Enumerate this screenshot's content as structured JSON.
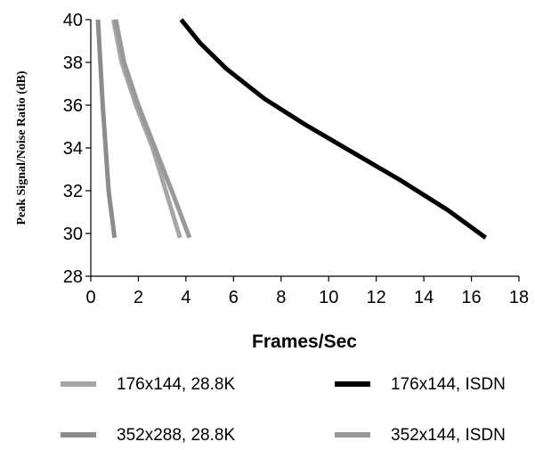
{
  "chart_data": {
    "type": "line",
    "xlabel": "Frames/Sec",
    "ylabel": "Peak Signal/Noise Ratio (dB)",
    "xlim": [
      0,
      18
    ],
    "ylim": [
      28,
      40
    ],
    "x_ticks": [
      "0",
      "2",
      "4",
      "6",
      "8",
      "10",
      "12",
      "14",
      "16",
      "18"
    ],
    "y_ticks": [
      "28",
      "30",
      "32",
      "34",
      "36",
      "38",
      "40"
    ],
    "grid": false,
    "legend_position": "bottom",
    "series": [
      {
        "name": "176x144, 28.8K",
        "color": "#a6a6a6",
        "points": [
          [
            0.95,
            40.0
          ],
          [
            1.3,
            38.0
          ],
          [
            1.9,
            36.0
          ],
          [
            2.6,
            34.0
          ],
          [
            3.15,
            32.0
          ],
          [
            3.75,
            29.8
          ]
        ]
      },
      {
        "name": "176x144, ISDN",
        "color": "#000000",
        "points": [
          [
            3.8,
            40.0
          ],
          [
            4.6,
            38.9
          ],
          [
            5.7,
            37.7
          ],
          [
            7.3,
            36.3
          ],
          [
            9.0,
            35.1
          ],
          [
            11.0,
            33.8
          ],
          [
            13.0,
            32.5
          ],
          [
            15.0,
            31.1
          ],
          [
            16.6,
            29.8
          ]
        ]
      },
      {
        "name": "352x288, 28.8K",
        "color": "#8c8c8c",
        "points": [
          [
            0.3,
            40.0
          ],
          [
            0.5,
            36.0
          ],
          [
            0.75,
            32.0
          ],
          [
            1.0,
            29.8
          ]
        ]
      },
      {
        "name": "352x144, ISDN",
        "color": "#999999",
        "points": [
          [
            1.05,
            40.0
          ],
          [
            1.4,
            38.0
          ],
          [
            2.0,
            36.0
          ],
          [
            2.7,
            34.0
          ],
          [
            3.4,
            32.0
          ],
          [
            4.15,
            29.8
          ]
        ]
      }
    ]
  }
}
